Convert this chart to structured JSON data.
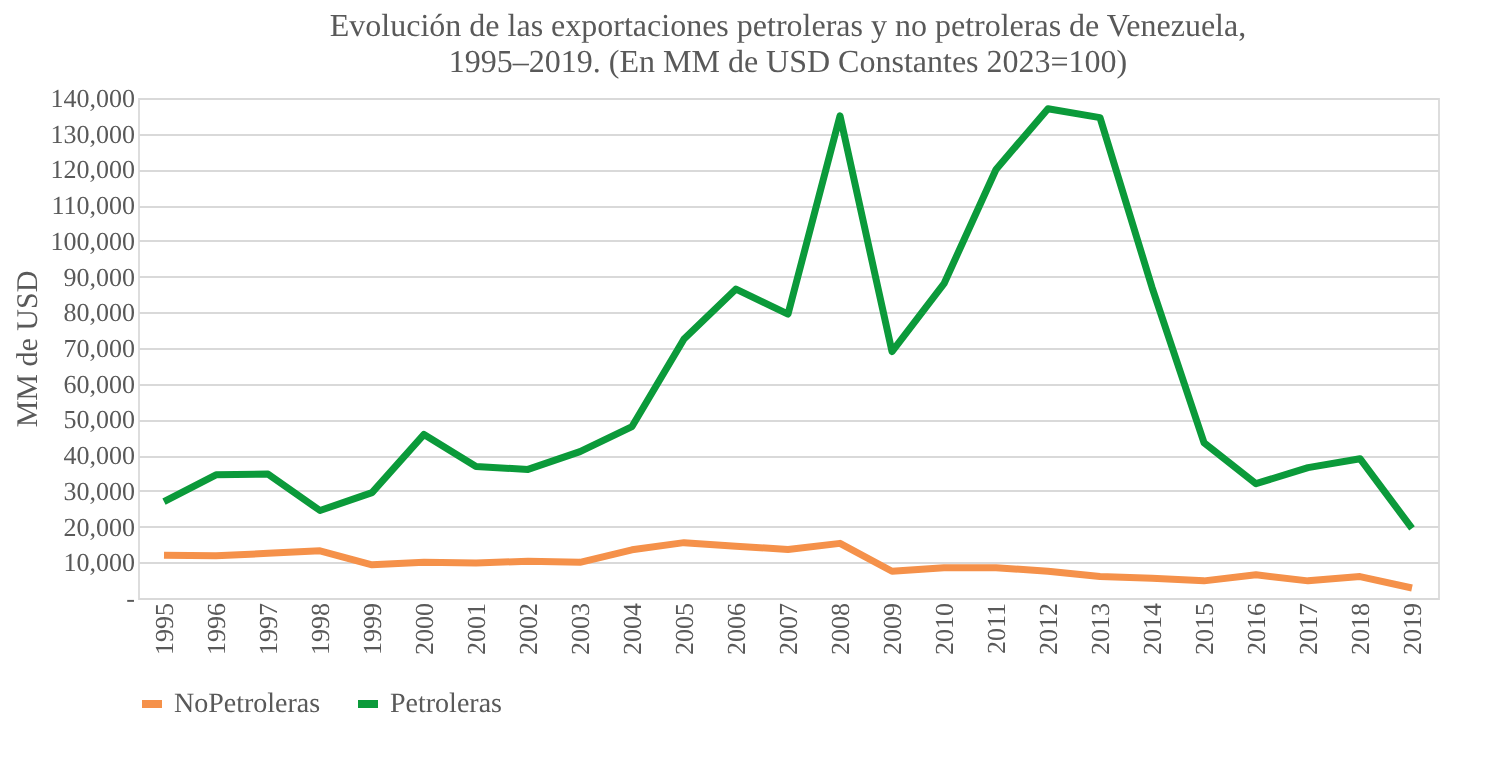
{
  "chart_data": {
    "type": "line",
    "title": "Evolución de las exportaciones petroleras y no petroleras de Venezuela, 1995–2019. (En MM de USD Constantes 2023=100)",
    "ylabel": "MM de USD",
    "categories": [
      "1995",
      "1996",
      "1997",
      "1998",
      "1999",
      "2000",
      "2001",
      "2002",
      "2003",
      "2004",
      "2005",
      "2006",
      "2007",
      "2008",
      "2009",
      "2010",
      "2011",
      "2012",
      "2013",
      "2014",
      "2015",
      "2016",
      "2017",
      "2018",
      "2019"
    ],
    "series": [
      {
        "name": "NoPetroleras",
        "color": "#f5914a",
        "values": [
          12000,
          11800,
          12500,
          13200,
          9300,
          10000,
          9800,
          10300,
          10000,
          13500,
          15500,
          14500,
          13600,
          15300,
          7500,
          8500,
          8500,
          7500,
          6000,
          5500,
          4800,
          6500,
          4800,
          6000,
          2800
        ]
      },
      {
        "name": "Petroleras",
        "color": "#0b9a3a",
        "values": [
          27000,
          34500,
          34700,
          24500,
          29500,
          45800,
          36800,
          36000,
          41000,
          48000,
          72500,
          86500,
          79500,
          135000,
          69000,
          88000,
          120000,
          137000,
          134500,
          87000,
          43500,
          32000,
          36500,
          39000,
          19500
        ]
      }
    ],
    "ylim": [
      0,
      140000
    ],
    "yticks": [
      {
        "value": 0,
        "label": "-"
      },
      {
        "value": 10000,
        "label": "10,000"
      },
      {
        "value": 20000,
        "label": "20,000"
      },
      {
        "value": 30000,
        "label": "30,000"
      },
      {
        "value": 40000,
        "label": "40,000"
      },
      {
        "value": 50000,
        "label": "50,000"
      },
      {
        "value": 60000,
        "label": "60,000"
      },
      {
        "value": 70000,
        "label": "70,000"
      },
      {
        "value": 80000,
        "label": "80,000"
      },
      {
        "value": 90000,
        "label": "90,000"
      },
      {
        "value": 100000,
        "label": "100,000"
      },
      {
        "value": 110000,
        "label": "110,000"
      },
      {
        "value": 120000,
        "label": "120,000"
      },
      {
        "value": 130000,
        "label": "130,000"
      },
      {
        "value": 140000,
        "label": "140,000"
      }
    ],
    "grid": "y",
    "legend": "bottom",
    "marker": "none",
    "line_style": "solid"
  }
}
